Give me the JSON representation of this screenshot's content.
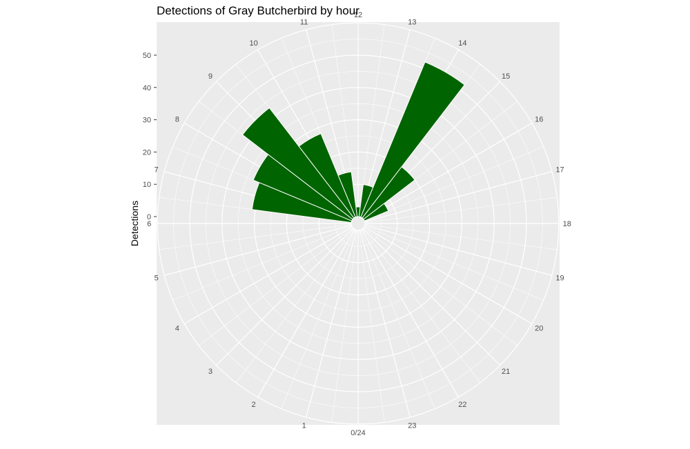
{
  "chart_data": {
    "type": "bar",
    "coord": "polar",
    "title": "Detections of Gray Butcherbird by hour",
    "xlabel": "",
    "ylabel": "Detections",
    "categories": [
      "0/24",
      "1",
      "2",
      "3",
      "4",
      "5",
      "6",
      "7",
      "8",
      "9",
      "10",
      "11",
      "12",
      "13",
      "14",
      "15",
      "16",
      "17",
      "18",
      "19",
      "20",
      "21",
      "22",
      "23"
    ],
    "values": [
      0,
      0,
      0,
      0,
      0,
      0,
      0,
      31,
      33,
      43,
      28,
      14,
      3,
      10,
      52,
      20,
      8,
      0,
      0,
      0,
      0,
      0,
      0,
      0
    ],
    "y_ticks": [
      0,
      10,
      20,
      30,
      40,
      50
    ],
    "ylim": [
      0,
      60
    ],
    "bar_color": "#006400",
    "panel_color": "#ebebeb",
    "grid": true
  }
}
